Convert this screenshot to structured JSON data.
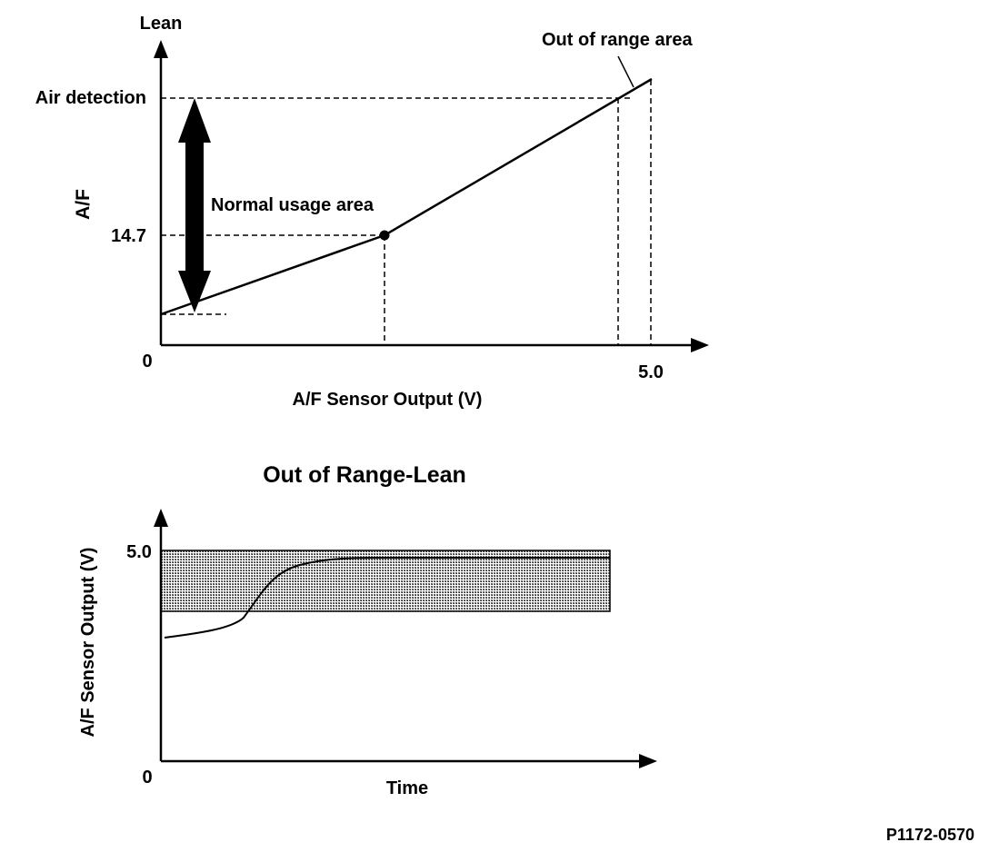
{
  "top_chart": {
    "y_axis_top_label": "Lean",
    "y_axis_title": "A/F",
    "x_axis_title": "A/F Sensor Output (V)",
    "origin_label": "0",
    "x_tick_label": "5.0",
    "y_tick_air_detection": "Air detection",
    "y_tick_stoich": "14.7",
    "normal_area_label": "Normal usage area",
    "out_of_range_label": "Out of range area"
  },
  "bottom_chart": {
    "title": "Out of Range-Lean",
    "y_axis_title": "A/F Sensor Output (V)",
    "x_axis_title": "Time",
    "origin_label": "0",
    "y_tick_label": "5.0"
  },
  "figure_code": "P1172-0570",
  "colors": {
    "ink": "#000000",
    "shade": "#b8b8b8",
    "background": "#ffffff"
  }
}
